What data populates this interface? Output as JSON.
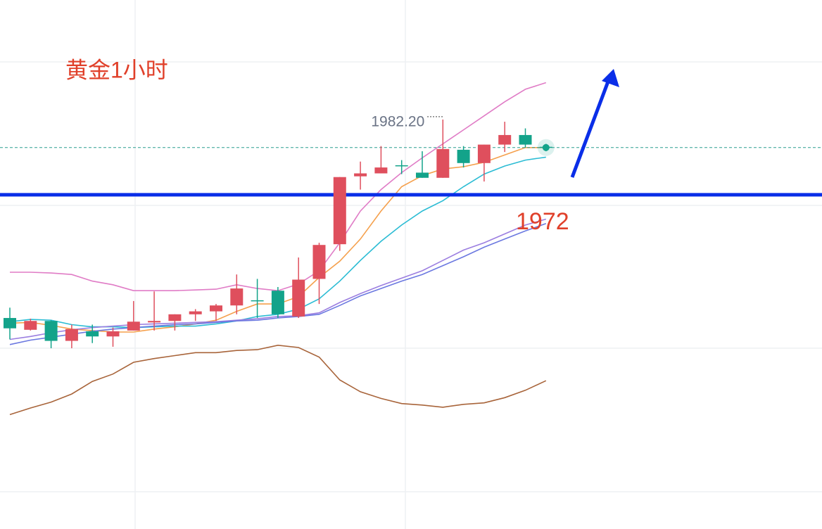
{
  "chart_data": {
    "type": "candlestick",
    "title": "黄金1小时",
    "ylim": [
      1926.7,
      1998.4
    ],
    "up_color": "#df4f5d",
    "down_color": "#13a38a",
    "open": [
      1955.3,
      1953.7,
      1954.9,
      1952.2,
      1953.5,
      1952.8,
      1953.6,
      1954.7,
      1954.9,
      1955.8,
      1956.2,
      1957.0,
      1957.7,
      1959.0,
      1955.5,
      1960.6,
      1965.3,
      1974.5,
      1974.9,
      1976.0,
      1975.0,
      1974.3,
      1978.1,
      1976.3,
      1978.8,
      1980.1,
      1978.5
    ],
    "high": [
      1956.7,
      1955.2,
      1955.0,
      1954.4,
      1954.4,
      1954.0,
      1957.6,
      1958.9,
      1955.8,
      1956.5,
      1957.2,
      1961.2,
      1960.6,
      1959.5,
      1963.5,
      1965.5,
      1974.4,
      1976.5,
      1978.6,
      1976.7,
      1977.9,
      1982.2,
      1978.6,
      1978.8,
      1981.9,
      1981.0,
      1978.9
    ],
    "low": [
      1952.4,
      1953.6,
      1951.2,
      1951.2,
      1951.9,
      1951.4,
      1953.6,
      1953.6,
      1953.6,
      1954.9,
      1954.9,
      1955.8,
      1955.3,
      1955.3,
      1955.3,
      1957.2,
      1964.4,
      1972.7,
      1974.9,
      1974.8,
      1974.3,
      1974.3,
      1975.7,
      1973.8,
      1977.8,
      1978.4,
      1977.9
    ],
    "close": [
      1953.9,
      1954.9,
      1952.2,
      1953.8,
      1952.8,
      1953.5,
      1954.8,
      1954.9,
      1955.8,
      1956.2,
      1957.0,
      1959.3,
      1957.6,
      1955.8,
      1960.5,
      1965.2,
      1974.4,
      1974.9,
      1975.7,
      1975.9,
      1974.3,
      1978.2,
      1976.3,
      1978.8,
      1980.1,
      1978.8,
      1978.4
    ],
    "lines": [
      {
        "color": "#e07cc6",
        "values": [
          1961.5,
          1961.5,
          1961.4,
          1961.2,
          1960.3,
          1959.8,
          1959.0,
          1959.0,
          1959.0,
          1959.1,
          1959.2,
          1959.8,
          1959.3,
          1959.0,
          1959.9,
          1961.7,
          1965.5,
          1969.8,
          1972.7,
          1975.0,
          1977.0,
          1978.9,
          1980.8,
          1982.7,
          1984.6,
          1986.3,
          1987.2
        ]
      },
      {
        "color": "#f5a04c",
        "values": [
          1954.6,
          1954.7,
          1954.3,
          1953.8,
          1953.6,
          1953.4,
          1953.4,
          1953.8,
          1954.1,
          1954.5,
          1955.0,
          1956.2,
          1957.2,
          1957.2,
          1958.2,
          1960.8,
          1963.0,
          1966.0,
          1969.8,
          1973.1,
          1974.6,
          1975.5,
          1975.8,
          1976.4,
          1977.4,
          1978.4,
          1978.4
        ]
      },
      {
        "color": "#2bbcd4",
        "values": [
          1954.8,
          1955.1,
          1955.0,
          1954.4,
          1954.1,
          1954.1,
          1954.0,
          1954.1,
          1954.2,
          1954.2,
          1954.5,
          1954.9,
          1955.5,
          1955.8,
          1956.5,
          1957.9,
          1960.3,
          1963.1,
          1965.7,
          1967.9,
          1969.8,
          1971.2,
          1973.1,
          1974.8,
          1975.9,
          1976.7,
          1977.1
        ]
      },
      {
        "color": "#9b7ee0",
        "values": [
          1952.4,
          1952.8,
          1953.3,
          1953.7,
          1954.0,
          1954.2,
          1954.4,
          1954.5,
          1954.6,
          1954.7,
          1954.8,
          1955.0,
          1955.2,
          1955.5,
          1955.6,
          1956.0,
          1957.4,
          1958.6,
          1959.7,
          1960.7,
          1961.7,
          1963.1,
          1964.5,
          1965.5,
          1966.7,
          1967.9,
          1968.7
        ]
      },
      {
        "color": "#6b78e0",
        "values": [
          1951.7,
          1952.3,
          1952.7,
          1953.1,
          1953.5,
          1953.8,
          1954.0,
          1954.2,
          1954.4,
          1954.5,
          1954.7,
          1954.9,
          1955.0,
          1955.3,
          1955.5,
          1955.8,
          1957.0,
          1958.3,
          1959.3,
          1960.3,
          1961.2,
          1962.4,
          1963.6,
          1964.9,
          1966.0,
          1967.1,
          1968.1
        ]
      },
      {
        "color": "#a8643a",
        "values": [
          1942.2,
          1943.1,
          1943.9,
          1945.0,
          1946.7,
          1947.7,
          1949.3,
          1949.8,
          1950.2,
          1950.6,
          1950.6,
          1950.9,
          1951.0,
          1951.6,
          1951.3,
          1950.0,
          1946.9,
          1945.3,
          1944.4,
          1943.7,
          1943.5,
          1943.2,
          1943.6,
          1943.8,
          1944.5,
          1945.5,
          1946.8
        ]
      }
    ],
    "level": 1972,
    "level_color": "#0a2ee8",
    "high_label": {
      "value": 1982.2,
      "label": "1982.20"
    }
  }
}
